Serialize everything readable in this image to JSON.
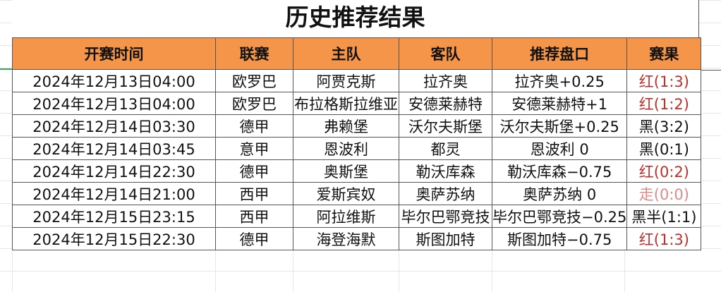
{
  "title": "历史推荐结果",
  "columns": [
    "开赛时间",
    "联赛",
    "主队",
    "客队",
    "推荐盘口",
    "赛果"
  ],
  "colors": {
    "header_bg": "#f4954a",
    "red": "#c0302b",
    "black": "#111111",
    "push": "#e08a8a"
  },
  "rows": [
    {
      "time": "2024年12月13日04:00",
      "league": "欧罗巴",
      "home": "阿贾克斯",
      "away": "拉齐奥",
      "pick": "拉齐奥+0.25",
      "result": "红(1:3)",
      "status": "red"
    },
    {
      "time": "2024年12月13日04:00",
      "league": "欧罗巴",
      "home": "布拉格斯拉维亚",
      "away": "安德莱赫特",
      "pick": "安德莱赫特+1",
      "result": "红(1:2)",
      "status": "red"
    },
    {
      "time": "2024年12月14日03:30",
      "league": "德甲",
      "home": "弗赖堡",
      "away": "沃尔夫斯堡",
      "pick": "沃尔夫斯堡+0.25",
      "result": "黑(3:2)",
      "status": "black"
    },
    {
      "time": "2024年12月14日03:45",
      "league": "意甲",
      "home": "恩波利",
      "away": "都灵",
      "pick": "恩波利 0",
      "result": "黑(0:1)",
      "status": "black"
    },
    {
      "time": "2024年12月14日22:30",
      "league": "德甲",
      "home": "奥斯堡",
      "away": "勒沃库森",
      "pick": "勒沃库森−0.75",
      "result": "红(0:2)",
      "status": "red"
    },
    {
      "time": "2024年12月14日21:00",
      "league": "西甲",
      "home": "爱斯宾奴",
      "away": "奥萨苏纳",
      "pick": "奥萨苏纳 0",
      "result": "走(0:0)",
      "status": "push"
    },
    {
      "time": "2024年12月15日23:15",
      "league": "西甲",
      "home": "阿拉维斯",
      "away": "毕尔巴鄂竞技",
      "pick": "毕尔巴鄂竞技−0.25",
      "result": "黑半(1:1)",
      "status": "black"
    },
    {
      "time": "2024年12月15日22:30",
      "league": "德甲",
      "home": "海登海默",
      "away": "斯图加特",
      "pick": "斯图加特−0.75",
      "result": "红(1:3)",
      "status": "red"
    }
  ]
}
